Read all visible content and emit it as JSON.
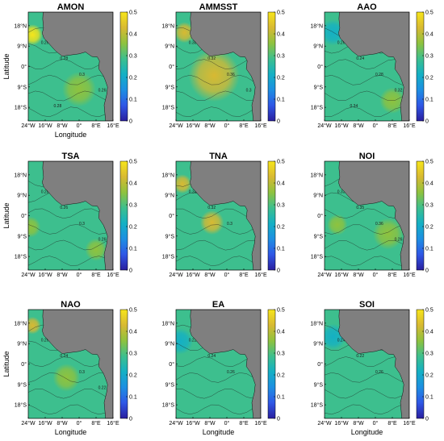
{
  "figure": {
    "colormap": [
      "#2a1f9e",
      "#2f57e6",
      "#1d8fe2",
      "#14b0c4",
      "#3dbf8e",
      "#8fc23e",
      "#d8b932",
      "#f7e51a"
    ],
    "land_color": "#7f7f7f"
  },
  "chart_data": [
    {
      "type": "heatmap",
      "title": "AMON",
      "xlabel": "Longitude",
      "ylabel": "Latitude",
      "x_ticks": [
        "24°W",
        "16°W",
        "8°W",
        "0°",
        "8°E",
        "16°E"
      ],
      "y_ticks": [
        "18°N",
        "9°N",
        "0°",
        "9°S",
        "18°S"
      ],
      "colorbar": {
        "ticks": [
          "0.5",
          "0.4",
          "0.3",
          "0.2",
          "0.1",
          "0"
        ],
        "range": [
          0,
          0.5
        ]
      },
      "background_value": 0.3,
      "contour_labels": [
        "0.26",
        "0.28",
        "0.3",
        "0.26",
        "0.28"
      ],
      "hotspots": [
        {
          "lon": -22,
          "lat": 14,
          "value": 0.48,
          "r": 0.12
        },
        {
          "lon": 0,
          "lat": -10,
          "value": 0.33,
          "r": 0.2
        }
      ]
    },
    {
      "type": "heatmap",
      "title": "AMMSST",
      "xlabel": "",
      "ylabel": "",
      "x_ticks": [
        "24°W",
        "16°W",
        "8°W",
        "0°",
        "8°E",
        "16°E"
      ],
      "y_ticks": [
        "18°N",
        "9°N",
        "0°",
        "9°S",
        "18°S"
      ],
      "colorbar": {
        "ticks": [
          "0.5",
          "0.4",
          "0.3",
          "0.2",
          "0.1",
          "0"
        ],
        "range": [
          0,
          0.5
        ]
      },
      "background_value": 0.3,
      "contour_labels": [
        "0.38",
        "0.32",
        "0.36",
        "0.3"
      ],
      "hotspots": [
        {
          "lon": -20,
          "lat": 15,
          "value": 0.45,
          "r": 0.12
        },
        {
          "lon": -6,
          "lat": -4,
          "value": 0.4,
          "r": 0.3
        }
      ]
    },
    {
      "type": "heatmap",
      "title": "AAO",
      "xlabel": "",
      "ylabel": "",
      "x_ticks": [
        "24°W",
        "16°W",
        "8°W",
        "0°",
        "8°E",
        "16°E"
      ],
      "y_ticks": [
        "18°N",
        "9°N",
        "0°",
        "9°S",
        "18°S"
      ],
      "colorbar": {
        "ticks": [
          "0.5",
          "0.4",
          "0.3",
          "0.2",
          "0.1",
          "0"
        ],
        "range": [
          0,
          0.5
        ]
      },
      "background_value": 0.27,
      "contour_labels": [
        "0.26",
        "0.24",
        "0.28",
        "0.32",
        "0.34"
      ],
      "hotspots": [
        {
          "lon": -20,
          "lat": 15,
          "value": 0.2,
          "r": 0.15
        },
        {
          "lon": 8,
          "lat": -15,
          "value": 0.33,
          "r": 0.15
        }
      ]
    },
    {
      "type": "heatmap",
      "title": "TSA",
      "xlabel": "",
      "ylabel": "Latitude",
      "x_ticks": [
        "24°W",
        "16°W",
        "8°W",
        "0°",
        "8°E",
        "16°E"
      ],
      "y_ticks": [
        "18°N",
        "9°N",
        "0°",
        "9°S",
        "18°S"
      ],
      "colorbar": {
        "ticks": [
          "0.5",
          "0.4",
          "0.3",
          "0.2",
          "0.1",
          "0"
        ],
        "range": [
          0,
          0.5
        ]
      },
      "background_value": 0.29,
      "contour_labels": [
        "0.28",
        "0.26",
        "0.3",
        "0.26"
      ],
      "hotspots": [
        {
          "lon": -23,
          "lat": -5,
          "value": 0.36,
          "r": 0.12
        },
        {
          "lon": 8,
          "lat": -15,
          "value": 0.37,
          "r": 0.13
        }
      ]
    },
    {
      "type": "heatmap",
      "title": "TNA",
      "xlabel": "",
      "ylabel": "",
      "x_ticks": [
        "24°W",
        "16°W",
        "8°W",
        "0°",
        "8°E",
        "16°E"
      ],
      "y_ticks": [
        "18°N",
        "9°N",
        "0°",
        "9°S",
        "18°S"
      ],
      "colorbar": {
        "ticks": [
          "0.5",
          "0.4",
          "0.3",
          "0.2",
          "0.1",
          "0"
        ],
        "range": [
          0,
          0.5
        ]
      },
      "background_value": 0.31,
      "contour_labels": [
        "0.34",
        "0.32",
        "0.3"
      ],
      "hotspots": [
        {
          "lon": -21,
          "lat": 14,
          "value": 0.46,
          "r": 0.11
        },
        {
          "lon": -7,
          "lat": -3,
          "value": 0.4,
          "r": 0.14
        }
      ]
    },
    {
      "type": "heatmap",
      "title": "NOI",
      "xlabel": "",
      "ylabel": "",
      "x_ticks": [
        "24°W",
        "16°W",
        "8°W",
        "0°",
        "8°E",
        "16°E"
      ],
      "y_ticks": [
        "18°N",
        "9°N",
        "0°",
        "9°S",
        "18°S"
      ],
      "colorbar": {
        "ticks": [
          "0.5",
          "0.4",
          "0.3",
          "0.2",
          "0.1",
          "0"
        ],
        "range": [
          0,
          0.5
        ]
      },
      "background_value": 0.28,
      "contour_labels": [
        "0.33",
        "0.35",
        "0.36",
        "0.26"
      ],
      "hotspots": [
        {
          "lon": -18,
          "lat": -4,
          "value": 0.36,
          "r": 0.12
        },
        {
          "lon": 6,
          "lat": -8,
          "value": 0.37,
          "r": 0.18
        }
      ]
    },
    {
      "type": "heatmap",
      "title": "NAO",
      "xlabel": "Longitude",
      "ylabel": "Latitude",
      "x_ticks": [
        "24°W",
        "16°W",
        "8°W",
        "0°",
        "8°E",
        "16°E"
      ],
      "y_ticks": [
        "18°N",
        "9°N",
        "0°",
        "9°S",
        "18°S"
      ],
      "colorbar": {
        "ticks": [
          "0.5",
          "0.4",
          "0.3",
          "0.2",
          "0.1",
          "0"
        ],
        "range": [
          0,
          0.5
        ]
      },
      "background_value": 0.27,
      "contour_labels": [
        "0.26",
        "0.24",
        "0.3",
        "0.22"
      ],
      "hotspots": [
        {
          "lon": -22,
          "lat": 17,
          "value": 0.42,
          "r": 0.1
        },
        {
          "lon": -6,
          "lat": -6,
          "value": 0.34,
          "r": 0.16
        }
      ]
    },
    {
      "type": "heatmap",
      "title": "EA",
      "xlabel": "Longitude",
      "ylabel": "",
      "x_ticks": [
        "24°W",
        "16°W",
        "8°W",
        "0°",
        "8°E",
        "16°E"
      ],
      "y_ticks": [
        "18°N",
        "9°N",
        "0°",
        "9°S",
        "18°S"
      ],
      "colorbar": {
        "ticks": [
          "0.5",
          "0.4",
          "0.3",
          "0.2",
          "0.1",
          "0"
        ],
        "range": [
          0,
          0.5
        ]
      },
      "background_value": 0.25,
      "contour_labels": [
        "0.22",
        "0.24",
        "0.26"
      ],
      "hotspots": [
        {
          "lon": -22,
          "lat": 10,
          "value": 0.2,
          "r": 0.15
        },
        {
          "lon": -10,
          "lat": -15,
          "value": 0.27,
          "r": 0.2
        }
      ]
    },
    {
      "type": "heatmap",
      "title": "SOI",
      "xlabel": "Longitude",
      "ylabel": "",
      "x_ticks": [
        "24°W",
        "16°W",
        "8°W",
        "0°",
        "8°E",
        "16°E"
      ],
      "y_ticks": [
        "18°N",
        "9°N",
        "0°",
        "9°S",
        "18°S"
      ],
      "colorbar": {
        "ticks": [
          "0.5",
          "0.4",
          "0.3",
          "0.2",
          "0.1",
          "0"
        ],
        "range": [
          0,
          0.5
        ]
      },
      "background_value": 0.25,
      "contour_labels": [
        "0.24",
        "0.22",
        "0.26"
      ],
      "hotspots": [
        {
          "lon": -20,
          "lat": 12,
          "value": 0.21,
          "r": 0.15
        },
        {
          "lon": -8,
          "lat": -14,
          "value": 0.27,
          "r": 0.2
        }
      ]
    }
  ]
}
